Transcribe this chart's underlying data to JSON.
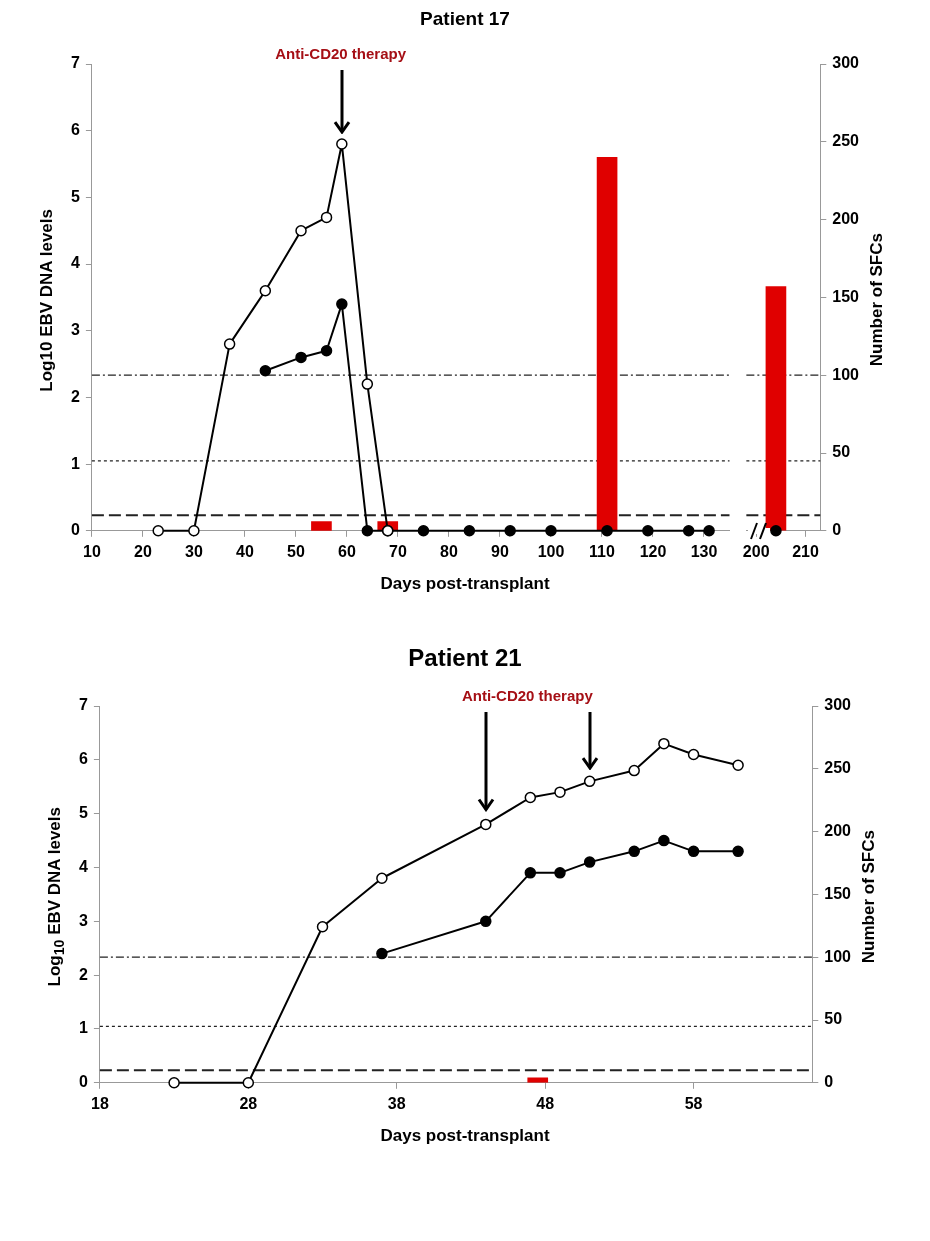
{
  "chart_data": [
    {
      "type": "line",
      "title": "Patient 17",
      "xlabel": "Days post-transplant",
      "ylabel": "Log10 EBV DNA levels",
      "marker": "circle",
      "tick_labels": "xy",
      "xlim": [
        10,
        135
      ],
      "xticks": [
        10,
        20,
        30,
        40,
        50,
        60,
        70,
        80,
        90,
        100,
        110,
        120,
        130
      ],
      "ylim": [
        0,
        7
      ],
      "yticks": [
        0,
        1,
        2,
        3,
        4,
        5,
        6,
        7
      ],
      "y2lim": [
        0,
        300
      ],
      "series": [
        {
          "type": "bar",
          "axis": "y2",
          "color": "#e00000",
          "x": [
            55,
            68,
            111
          ],
          "values": [
            6,
            6,
            240
          ]
        },
        {
          "color": "#000000",
          "colors": [
            "#ffffff",
            "#ffffff",
            "#ffffff",
            "#ffffff",
            "#ffffff",
            "#ffffff",
            "#ffffff",
            "#ffffff",
            "#ffffff"
          ],
          "x": [
            23,
            30,
            37,
            44,
            51,
            56,
            59,
            64,
            68
          ],
          "values": [
            0,
            0,
            2.8,
            3.6,
            4.5,
            4.7,
            5.8,
            2.2,
            0
          ]
        },
        {
          "color": "#000000",
          "x": [
            44,
            51,
            56,
            59,
            64,
            68,
            75,
            84,
            92,
            100,
            111,
            119,
            127,
            131
          ],
          "values": [
            2.4,
            2.6,
            2.7,
            3.4,
            0,
            0,
            0,
            0,
            0,
            0,
            0,
            0,
            0,
            0
          ]
        }
      ],
      "ref_lines": [
        {
          "axis": "y2",
          "value": 100,
          "line_style": "dashdot"
        },
        {
          "axis": "y2",
          "value": 45,
          "line_style": "dotted"
        },
        {
          "axis": "y2",
          "value": 10,
          "line_style": "dashed"
        }
      ],
      "annotations": [
        "Anti-CD20 therapy"
      ]
    },
    {
      "type": "line",
      "y2label": "Number of SFCs",
      "marker": "circle",
      "tick_labels": "xy2",
      "xlim": [
        198,
        213
      ],
      "xticks": [
        200,
        210
      ],
      "ylim": [
        0,
        7
      ],
      "y2lim": [
        0,
        300
      ],
      "y2ticks": [
        0,
        50,
        100,
        150,
        200,
        250,
        300
      ],
      "series": [
        {
          "type": "bar",
          "axis": "y2",
          "color": "#e00000",
          "x": [
            204
          ],
          "values": [
            157
          ]
        },
        {
          "color": "#000000",
          "x": [
            204
          ],
          "values": [
            0
          ]
        }
      ],
      "ref_lines": [
        {
          "axis": "y2",
          "value": 100,
          "line_style": "dashdot"
        },
        {
          "axis": "y2",
          "value": 45,
          "line_style": "dotted"
        },
        {
          "axis": "y2",
          "value": 10,
          "line_style": "dashed"
        }
      ]
    },
    {
      "type": "line",
      "title": "Patient 21",
      "xlabel": "Days post-transplant",
      "ylabel": "Log$_{10}$ EBV DNA levels",
      "y2label": "Number of SFCs",
      "marker": "circle",
      "xlim": [
        18,
        66
      ],
      "xticks": [
        18,
        28,
        38,
        48,
        58
      ],
      "ylim": [
        0,
        7
      ],
      "yticks": [
        0,
        1,
        2,
        3,
        4,
        5,
        6,
        7
      ],
      "y2lim": [
        0,
        300
      ],
      "y2ticks": [
        0,
        50,
        100,
        150,
        200,
        250,
        300
      ],
      "series": [
        {
          "type": "bar",
          "axis": "y2",
          "color": "#e00000",
          "x": [
            47.5
          ],
          "values": [
            4
          ]
        },
        {
          "color": "#000000",
          "colors": [
            "#ffffff",
            "#ffffff",
            "#ffffff",
            "#ffffff",
            "#ffffff",
            "#ffffff",
            "#ffffff",
            "#ffffff",
            "#ffffff",
            "#ffffff",
            "#ffffff",
            "#ffffff"
          ],
          "x": [
            23,
            28,
            33,
            37,
            44,
            47,
            49,
            51,
            54,
            56,
            58,
            61
          ],
          "values": [
            0,
            0,
            2.9,
            3.8,
            4.8,
            5.3,
            5.4,
            5.6,
            5.8,
            6.3,
            6.1,
            5.9
          ]
        },
        {
          "color": "#000000",
          "x": [
            37,
            44,
            47,
            49,
            51,
            54,
            56,
            58,
            61
          ],
          "values": [
            2.4,
            3,
            3.9,
            3.9,
            4.1,
            4.3,
            4.5,
            4.3,
            4.3
          ]
        }
      ],
      "ref_lines": [
        {
          "axis": "y2",
          "value": 100,
          "line_style": "dashdot"
        },
        {
          "axis": "y2",
          "value": 45,
          "line_style": "dotted"
        },
        {
          "axis": "y2",
          "value": 10,
          "line_style": "dashed"
        }
      ],
      "annotations": [
        "Anti-CD20 therapy"
      ]
    }
  ]
}
